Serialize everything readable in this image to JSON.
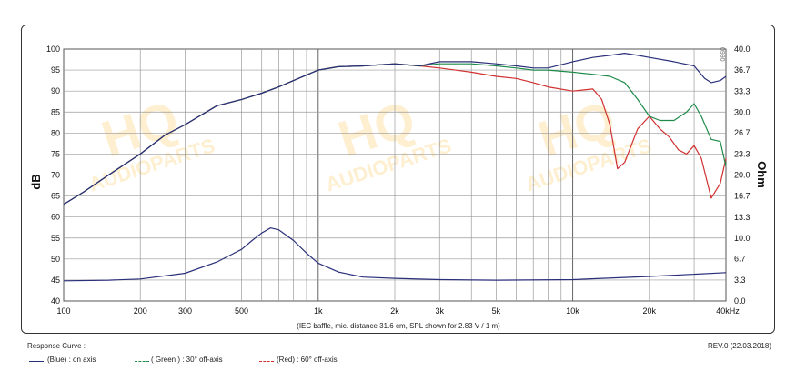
{
  "chart_data": {
    "type": "line",
    "x_scale": "log",
    "xlim": [
      100,
      40000
    ],
    "ylim": [
      40,
      100
    ],
    "y2lim": [
      0,
      40
    ],
    "x_ticks": [
      100,
      200,
      300,
      500,
      1000,
      2000,
      3000,
      5000,
      10000,
      20000,
      40000
    ],
    "x_tick_labels": [
      "100",
      "200",
      "300",
      "500",
      "1k",
      "2k",
      "3k",
      "5k",
      "10k",
      "20k",
      "40kHz"
    ],
    "y_ticks": [
      40,
      45,
      50,
      55,
      60,
      65,
      70,
      75,
      80,
      85,
      90,
      95,
      100
    ],
    "y_tick_labels": [
      "40",
      "45",
      "50",
      "55",
      "60",
      "65",
      "70",
      "75",
      "80",
      "85",
      "90",
      "95",
      "100"
    ],
    "y2_ticks": [
      0.0,
      3.3,
      6.7,
      10.0,
      13.3,
      16.7,
      20.0,
      23.3,
      26.7,
      30.0,
      33.3,
      36.7,
      40.0
    ],
    "y2_tick_labels": [
      "0.0",
      "3.3",
      "6.7",
      "10.0",
      "13.3",
      "16.7",
      "20.0",
      "23.3",
      "26.7",
      "30.0",
      "33.3",
      "36.7",
      "40.0"
    ],
    "ylabel": "dB",
    "y2label": "Ohm",
    "caption": "(IEC baffle, mic. distance 31.6 cm, SPL shown for 2.83 V / 1 m)",
    "corner_mark": "0990",
    "grid": true,
    "series": [
      {
        "name": "(Blue) : on axis",
        "color": "#2a2f7a",
        "axis": "left",
        "points": [
          [
            100,
            63
          ],
          [
            120,
            66
          ],
          [
            150,
            70
          ],
          [
            200,
            75
          ],
          [
            250,
            79.5
          ],
          [
            300,
            82
          ],
          [
            400,
            86.5
          ],
          [
            500,
            88
          ],
          [
            600,
            89.5
          ],
          [
            700,
            91
          ],
          [
            800,
            92.5
          ],
          [
            1000,
            95
          ],
          [
            1200,
            95.8
          ],
          [
            1500,
            96
          ],
          [
            2000,
            96.5
          ],
          [
            2500,
            96
          ],
          [
            3000,
            97
          ],
          [
            4000,
            97
          ],
          [
            5000,
            96.5
          ],
          [
            6000,
            96
          ],
          [
            7000,
            95.5
          ],
          [
            8000,
            95.5
          ],
          [
            10000,
            97
          ],
          [
            12000,
            98
          ],
          [
            14000,
            98.5
          ],
          [
            16000,
            99
          ],
          [
            18000,
            98.5
          ],
          [
            20000,
            98
          ],
          [
            25000,
            97
          ],
          [
            30000,
            96
          ],
          [
            33000,
            93
          ],
          [
            35000,
            92
          ],
          [
            38000,
            92.5
          ],
          [
            40000,
            93.5
          ]
        ]
      },
      {
        "name": "( Green ) : 30° off-axis",
        "color": "#1e8a4a",
        "axis": "left",
        "points": [
          [
            100,
            63
          ],
          [
            120,
            66
          ],
          [
            150,
            70
          ],
          [
            200,
            75
          ],
          [
            250,
            79.5
          ],
          [
            300,
            82
          ],
          [
            400,
            86.5
          ],
          [
            500,
            88
          ],
          [
            600,
            89.5
          ],
          [
            700,
            91
          ],
          [
            800,
            92.5
          ],
          [
            1000,
            95
          ],
          [
            1200,
            95.8
          ],
          [
            1500,
            96
          ],
          [
            2000,
            96.5
          ],
          [
            2500,
            96
          ],
          [
            3000,
            96.5
          ],
          [
            4000,
            96.5
          ],
          [
            5000,
            96
          ],
          [
            6000,
            95.5
          ],
          [
            7000,
            95
          ],
          [
            8000,
            95
          ],
          [
            10000,
            94.5
          ],
          [
            12000,
            94
          ],
          [
            14000,
            93.5
          ],
          [
            16000,
            92
          ],
          [
            18000,
            88
          ],
          [
            20000,
            84
          ],
          [
            22000,
            83
          ],
          [
            25000,
            83
          ],
          [
            28000,
            85
          ],
          [
            30000,
            87
          ],
          [
            32000,
            84
          ],
          [
            35000,
            78.5
          ],
          [
            38000,
            78
          ],
          [
            40000,
            72
          ]
        ]
      },
      {
        "name": "(Red) : 60° off-axis",
        "color": "#d03030",
        "axis": "left",
        "points": [
          [
            100,
            63
          ],
          [
            120,
            66
          ],
          [
            150,
            70
          ],
          [
            200,
            75
          ],
          [
            250,
            79.5
          ],
          [
            300,
            82
          ],
          [
            400,
            86.5
          ],
          [
            500,
            88
          ],
          [
            600,
            89.5
          ],
          [
            700,
            91
          ],
          [
            800,
            92.5
          ],
          [
            1000,
            95
          ],
          [
            1200,
            95.8
          ],
          [
            1500,
            96
          ],
          [
            2000,
            96.5
          ],
          [
            2500,
            96
          ],
          [
            3000,
            95.5
          ],
          [
            4000,
            94.5
          ],
          [
            5000,
            93.5
          ],
          [
            6000,
            93
          ],
          [
            7000,
            92
          ],
          [
            8000,
            91
          ],
          [
            10000,
            90
          ],
          [
            12000,
            90.5
          ],
          [
            13000,
            88
          ],
          [
            14000,
            82
          ],
          [
            15000,
            71.5
          ],
          [
            16000,
            73
          ],
          [
            18000,
            81
          ],
          [
            20000,
            84
          ],
          [
            22000,
            81
          ],
          [
            24000,
            79
          ],
          [
            26000,
            76
          ],
          [
            28000,
            75
          ],
          [
            30000,
            77
          ],
          [
            32000,
            74
          ],
          [
            35000,
            64.5
          ],
          [
            38000,
            68
          ],
          [
            40000,
            74
          ]
        ]
      },
      {
        "name": "Impedance",
        "color": "#2a2f7a",
        "axis": "right",
        "points": [
          [
            100,
            3.2
          ],
          [
            150,
            3.3
          ],
          [
            200,
            3.5
          ],
          [
            300,
            4.4
          ],
          [
            400,
            6.2
          ],
          [
            500,
            8.2
          ],
          [
            550,
            9.6
          ],
          [
            600,
            10.8
          ],
          [
            650,
            11.6
          ],
          [
            700,
            11.3
          ],
          [
            800,
            9.6
          ],
          [
            900,
            7.6
          ],
          [
            1000,
            6.0
          ],
          [
            1200,
            4.6
          ],
          [
            1500,
            3.8
          ],
          [
            2000,
            3.6
          ],
          [
            3000,
            3.4
          ],
          [
            5000,
            3.3
          ],
          [
            10000,
            3.4
          ],
          [
            20000,
            3.9
          ],
          [
            40000,
            4.5
          ]
        ]
      }
    ]
  },
  "legend": {
    "heading": "Response Curve :",
    "items": [
      {
        "label": "(Blue) : on axis",
        "color": "#2a2f7a"
      },
      {
        "label": "( Green ) : 30° off-axis",
        "color": "#1e8a4a"
      },
      {
        "label": "(Red) : 60° off-axis",
        "color": "#d03030"
      }
    ]
  },
  "revision": "REV.0 (22.03.2018)",
  "watermark": {
    "main": "HQ",
    "sub": "AUDIOPARTS",
    "color": "#f6a800"
  }
}
